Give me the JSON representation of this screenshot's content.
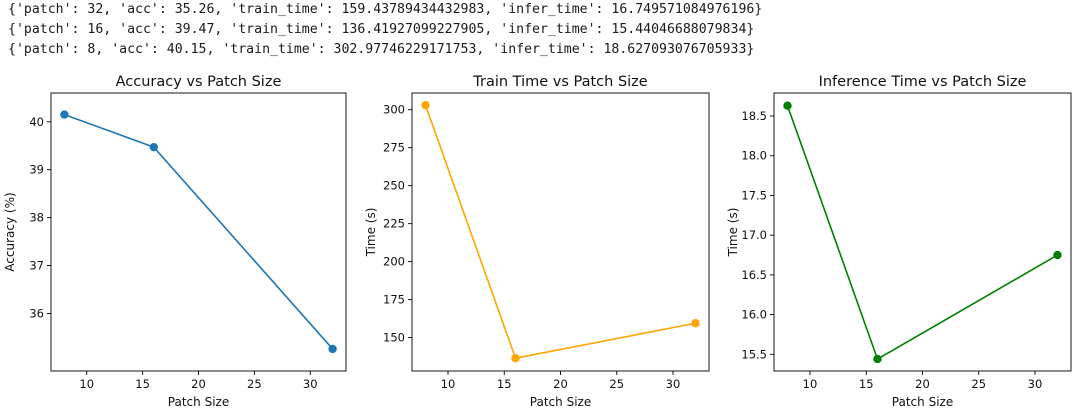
{
  "output": {
    "lines": [
      "{'patch': 32, 'acc': 35.26, 'train_time': 159.43789434432983, 'infer_time': 16.749571084976196}",
      "{'patch': 16, 'acc': 39.47, 'train_time': 136.41927099227905, 'infer_time': 15.44046688079834}",
      "{'patch': 8, 'acc': 40.15, 'train_time': 302.97746229171753, 'infer_time': 18.627093076705933}"
    ]
  },
  "chart_data": [
    {
      "type": "line",
      "title": "Accuracy vs Patch Size",
      "xlabel": "Patch Size",
      "ylabel": "Accuracy (%)",
      "x": [
        8,
        16,
        32
      ],
      "series": [
        {
          "values": [
            40.15,
            39.47,
            35.26
          ],
          "color": "#1f77b4"
        }
      ],
      "xlim": [
        6.8,
        33.2
      ],
      "ylim": [
        34.8,
        40.6
      ],
      "xticks": [
        10,
        15,
        20,
        25,
        30
      ],
      "yticks": [
        36,
        37,
        38,
        39,
        40
      ],
      "grid": false
    },
    {
      "type": "line",
      "title": "Train Time vs Patch Size",
      "xlabel": "Patch Size",
      "ylabel": "Time (s)",
      "x": [
        8,
        16,
        32
      ],
      "series": [
        {
          "values": [
            302.98,
            136.42,
            159.44
          ],
          "color": "#ffa500"
        }
      ],
      "xlim": [
        6.8,
        33.2
      ],
      "ylim": [
        128.0,
        311.0
      ],
      "xticks": [
        10,
        15,
        20,
        25,
        30
      ],
      "yticks": [
        150,
        175,
        200,
        225,
        250,
        275,
        300
      ],
      "grid": false
    },
    {
      "type": "line",
      "title": "Inference Time vs Patch Size",
      "xlabel": "Patch Size",
      "ylabel": "Time (s)",
      "x": [
        8,
        16,
        32
      ],
      "series": [
        {
          "values": [
            18.63,
            15.44,
            16.75
          ],
          "color": "#008000"
        }
      ],
      "xlim": [
        6.8,
        33.2
      ],
      "ylim": [
        15.29,
        18.79
      ],
      "xticks": [
        10,
        15,
        20,
        25,
        30
      ],
      "yticks": [
        15.5,
        16.0,
        16.5,
        17.0,
        17.5,
        18.0,
        18.5
      ],
      "grid": false
    }
  ]
}
